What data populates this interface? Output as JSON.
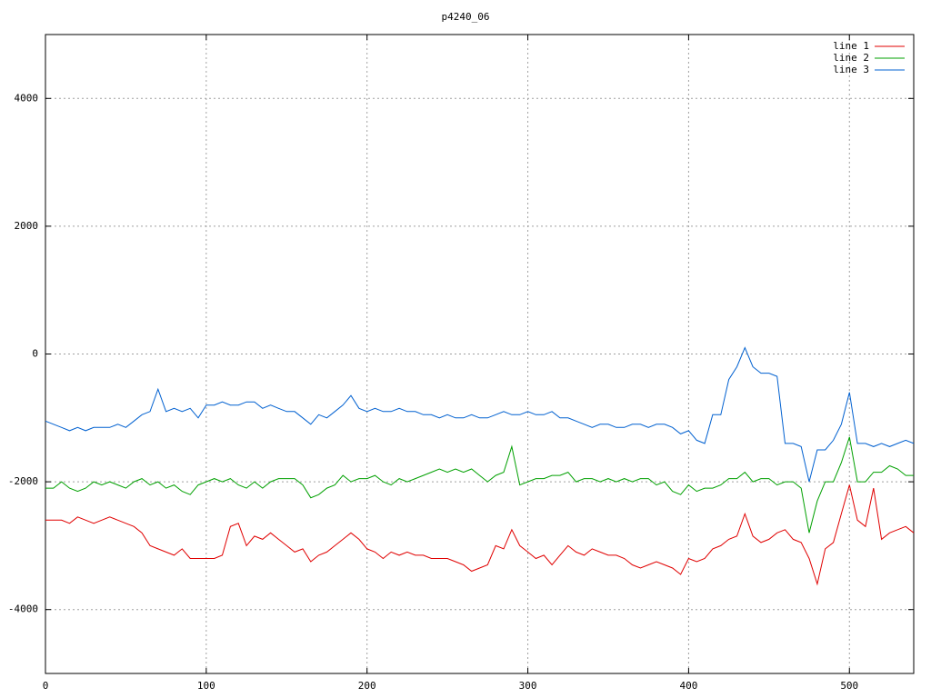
{
  "chart_data": {
    "type": "line",
    "title": "p4240_06",
    "x": [
      0,
      5,
      10,
      15,
      20,
      25,
      30,
      35,
      40,
      45,
      50,
      55,
      60,
      65,
      70,
      75,
      80,
      85,
      90,
      95,
      100,
      105,
      110,
      115,
      120,
      125,
      130,
      135,
      140,
      145,
      150,
      155,
      160,
      165,
      170,
      175,
      180,
      185,
      190,
      195,
      200,
      205,
      210,
      215,
      220,
      225,
      230,
      235,
      240,
      245,
      250,
      255,
      260,
      265,
      270,
      275,
      280,
      285,
      290,
      295,
      300,
      305,
      310,
      315,
      320,
      325,
      330,
      335,
      340,
      345,
      350,
      355,
      360,
      365,
      370,
      375,
      380,
      385,
      390,
      395,
      400,
      405,
      410,
      415,
      420,
      425,
      430,
      435,
      440,
      445,
      450,
      455,
      460,
      465,
      470,
      475,
      480,
      485,
      490,
      495,
      500,
      505,
      510,
      515,
      520,
      525,
      530,
      535,
      540
    ],
    "series": [
      {
        "name": "line 1",
        "color": "#e00000",
        "values": [
          -2600,
          -2600,
          -2600,
          -2650,
          -2550,
          -2600,
          -2650,
          -2600,
          -2550,
          -2600,
          -2650,
          -2700,
          -2800,
          -3000,
          -3050,
          -3100,
          -3150,
          -3050,
          -3200,
          -3200,
          -3200,
          -3200,
          -3150,
          -2700,
          -2650,
          -3000,
          -2850,
          -2900,
          -2800,
          -2900,
          -3000,
          -3100,
          -3050,
          -3250,
          -3150,
          -3100,
          -3000,
          -2900,
          -2800,
          -2900,
          -3050,
          -3100,
          -3200,
          -3100,
          -3150,
          -3100,
          -3150,
          -3150,
          -3200,
          -3200,
          -3200,
          -3250,
          -3300,
          -3400,
          -3350,
          -3300,
          -3000,
          -3050,
          -2750,
          -3000,
          -3100,
          -3200,
          -3150,
          -3300,
          -3150,
          -3000,
          -3100,
          -3150,
          -3050,
          -3100,
          -3150,
          -3150,
          -3200,
          -3300,
          -3350,
          -3300,
          -3250,
          -3300,
          -3350,
          -3450,
          -3200,
          -3250,
          -3200,
          -3050,
          -3000,
          -2900,
          -2850,
          -2500,
          -2850,
          -2950,
          -2900,
          -2800,
          -2750,
          -2900,
          -2950,
          -3200,
          -3600,
          -3050,
          -2950,
          -2500,
          -2050,
          -2600,
          -2700,
          -2100,
          -2900,
          -2800,
          -2750,
          -2700,
          -2800
        ]
      },
      {
        "name": "line 2",
        "color": "#00a000",
        "values": [
          -2100,
          -2100,
          -2000,
          -2100,
          -2150,
          -2100,
          -2000,
          -2050,
          -2000,
          -2050,
          -2100,
          -2000,
          -1950,
          -2050,
          -2000,
          -2100,
          -2050,
          -2150,
          -2200,
          -2050,
          -2000,
          -1950,
          -2000,
          -1950,
          -2050,
          -2100,
          -2000,
          -2100,
          -2000,
          -1950,
          -1950,
          -1950,
          -2050,
          -2250,
          -2200,
          -2100,
          -2050,
          -1900,
          -2000,
          -1950,
          -1950,
          -1900,
          -2000,
          -2050,
          -1950,
          -2000,
          -1950,
          -1900,
          -1850,
          -1800,
          -1850,
          -1800,
          -1850,
          -1800,
          -1900,
          -2000,
          -1900,
          -1850,
          -1450,
          -2050,
          -2000,
          -1950,
          -1950,
          -1900,
          -1900,
          -1850,
          -2000,
          -1950,
          -1950,
          -2000,
          -1950,
          -2000,
          -1950,
          -2000,
          -1950,
          -1950,
          -2050,
          -2000,
          -2150,
          -2200,
          -2050,
          -2150,
          -2100,
          -2100,
          -2050,
          -1950,
          -1950,
          -1850,
          -2000,
          -1950,
          -1950,
          -2050,
          -2000,
          -2000,
          -2100,
          -2800,
          -2300,
          -2000,
          -2000,
          -1700,
          -1300,
          -2000,
          -2000,
          -1850,
          -1850,
          -1750,
          -1800,
          -1900,
          -1900
        ]
      },
      {
        "name": "line 3",
        "color": "#0060d0",
        "values": [
          -1050,
          -1100,
          -1150,
          -1200,
          -1150,
          -1200,
          -1150,
          -1150,
          -1150,
          -1100,
          -1150,
          -1050,
          -950,
          -900,
          -550,
          -900,
          -850,
          -900,
          -850,
          -1000,
          -800,
          -800,
          -750,
          -800,
          -800,
          -750,
          -750,
          -850,
          -800,
          -850,
          -900,
          -900,
          -1000,
          -1100,
          -950,
          -1000,
          -900,
          -800,
          -650,
          -850,
          -900,
          -850,
          -900,
          -900,
          -850,
          -900,
          -900,
          -950,
          -950,
          -1000,
          -950,
          -1000,
          -1000,
          -950,
          -1000,
          -1000,
          -950,
          -900,
          -950,
          -950,
          -900,
          -950,
          -950,
          -900,
          -1000,
          -1000,
          -1050,
          -1100,
          -1150,
          -1100,
          -1100,
          -1150,
          -1150,
          -1100,
          -1100,
          -1150,
          -1100,
          -1100,
          -1150,
          -1250,
          -1200,
          -1350,
          -1400,
          -950,
          -950,
          -400,
          -200,
          100,
          -200,
          -300,
          -300,
          -350,
          -1400,
          -1400,
          -1450,
          -2000,
          -1500,
          -1500,
          -1350,
          -1100,
          -600,
          -1400,
          -1400,
          -1450,
          -1400,
          -1450,
          -1400,
          -1350,
          -1400
        ]
      }
    ],
    "xlim": [
      0,
      540
    ],
    "ylim": [
      -5000,
      5000
    ],
    "xticks": [
      0,
      100,
      200,
      300,
      400,
      500
    ],
    "yticks": [
      -4000,
      -2000,
      0,
      2000,
      4000
    ],
    "grid": true,
    "legend": "top-right"
  }
}
